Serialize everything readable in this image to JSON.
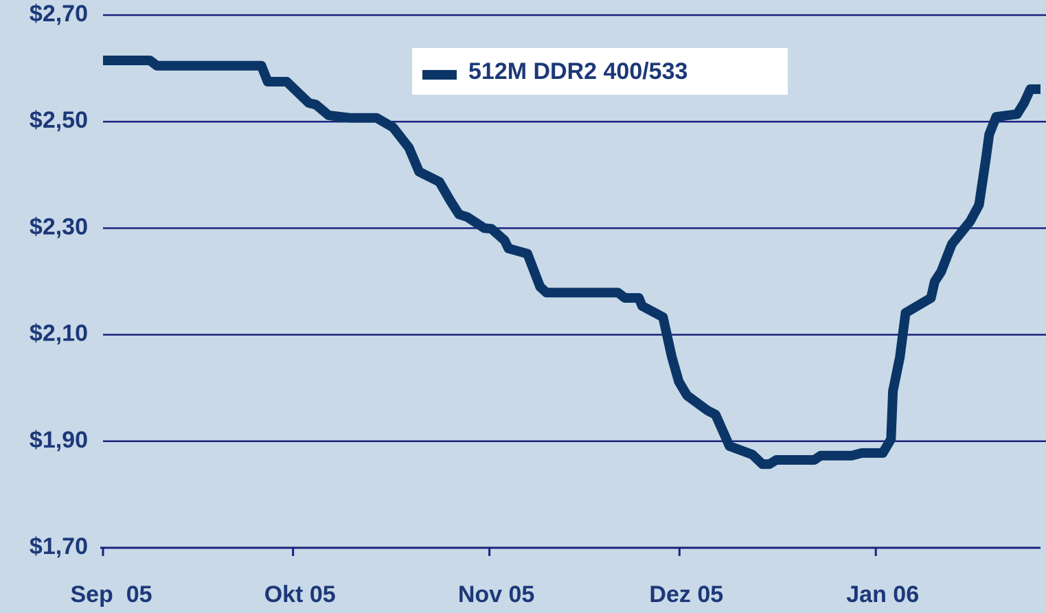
{
  "chart_data": {
    "type": "line",
    "x": [
      0,
      7.4,
      8.5,
      25,
      26,
      29,
      32.5,
      33.6,
      35.6,
      39,
      43.2,
      45.8,
      48.3,
      49.9,
      53.1,
      54.8,
      56.2,
      57.5,
      60.2,
      61.3,
      63.4,
      64,
      67,
      69,
      70,
      81.3,
      82.4,
      84.6,
      85.1,
      88.4,
      89.8,
      90.9,
      92.2,
      95.4,
      96.7,
      98.9,
      102.5,
      104.1,
      105.2,
      106.3,
      112.3,
      113.3,
      118.2,
      119.8,
      123.1,
      124.4,
      124.7,
      125.8,
      126.7,
      130.7,
      131.3,
      132.3,
      134,
      136.9,
      138.3,
      139.4,
      139.9,
      141,
      144.3,
      145.4,
      146.4,
      148
    ],
    "series": [
      {
        "name": "512M DDR2 400/533",
        "color": "#0b3566",
        "values": [
          2.615,
          2.615,
          2.605,
          2.605,
          2.575,
          2.575,
          2.535,
          2.532,
          2.512,
          2.507,
          2.507,
          2.489,
          2.451,
          2.406,
          2.387,
          2.352,
          2.326,
          2.321,
          2.3,
          2.299,
          2.277,
          2.262,
          2.252,
          2.19,
          2.179,
          2.179,
          2.169,
          2.169,
          2.154,
          2.133,
          2.058,
          2.012,
          1.986,
          1.958,
          1.95,
          1.891,
          1.875,
          1.857,
          1.857,
          1.865,
          1.865,
          1.873,
          1.873,
          1.878,
          1.878,
          1.904,
          1.994,
          2.058,
          2.141,
          2.169,
          2.2,
          2.218,
          2.27,
          2.313,
          2.344,
          2.432,
          2.476,
          2.509,
          2.514,
          2.535,
          2.561,
          2.561
        ]
      }
    ],
    "xlim": [
      0,
      148
    ],
    "xticks": [
      {
        "value": 0,
        "label": "Sep  05"
      },
      {
        "value": 30,
        "label": "Okt 05"
      },
      {
        "value": 61,
        "label": "Nov 05"
      },
      {
        "value": 91,
        "label": "Dez 05"
      },
      {
        "value": 122,
        "label": "Jan 06"
      }
    ],
    "ylim": [
      1.7,
      2.7
    ],
    "yticks": [
      {
        "value": 1.7,
        "label": "$1,70"
      },
      {
        "value": 1.9,
        "label": "$1,90"
      },
      {
        "value": 2.1,
        "label": "$2,10"
      },
      {
        "value": 2.3,
        "label": "$2,30"
      },
      {
        "value": 2.5,
        "label": "$2,50"
      },
      {
        "value": 2.7,
        "label": "$2,70"
      }
    ],
    "grid": true,
    "legend": "top"
  }
}
